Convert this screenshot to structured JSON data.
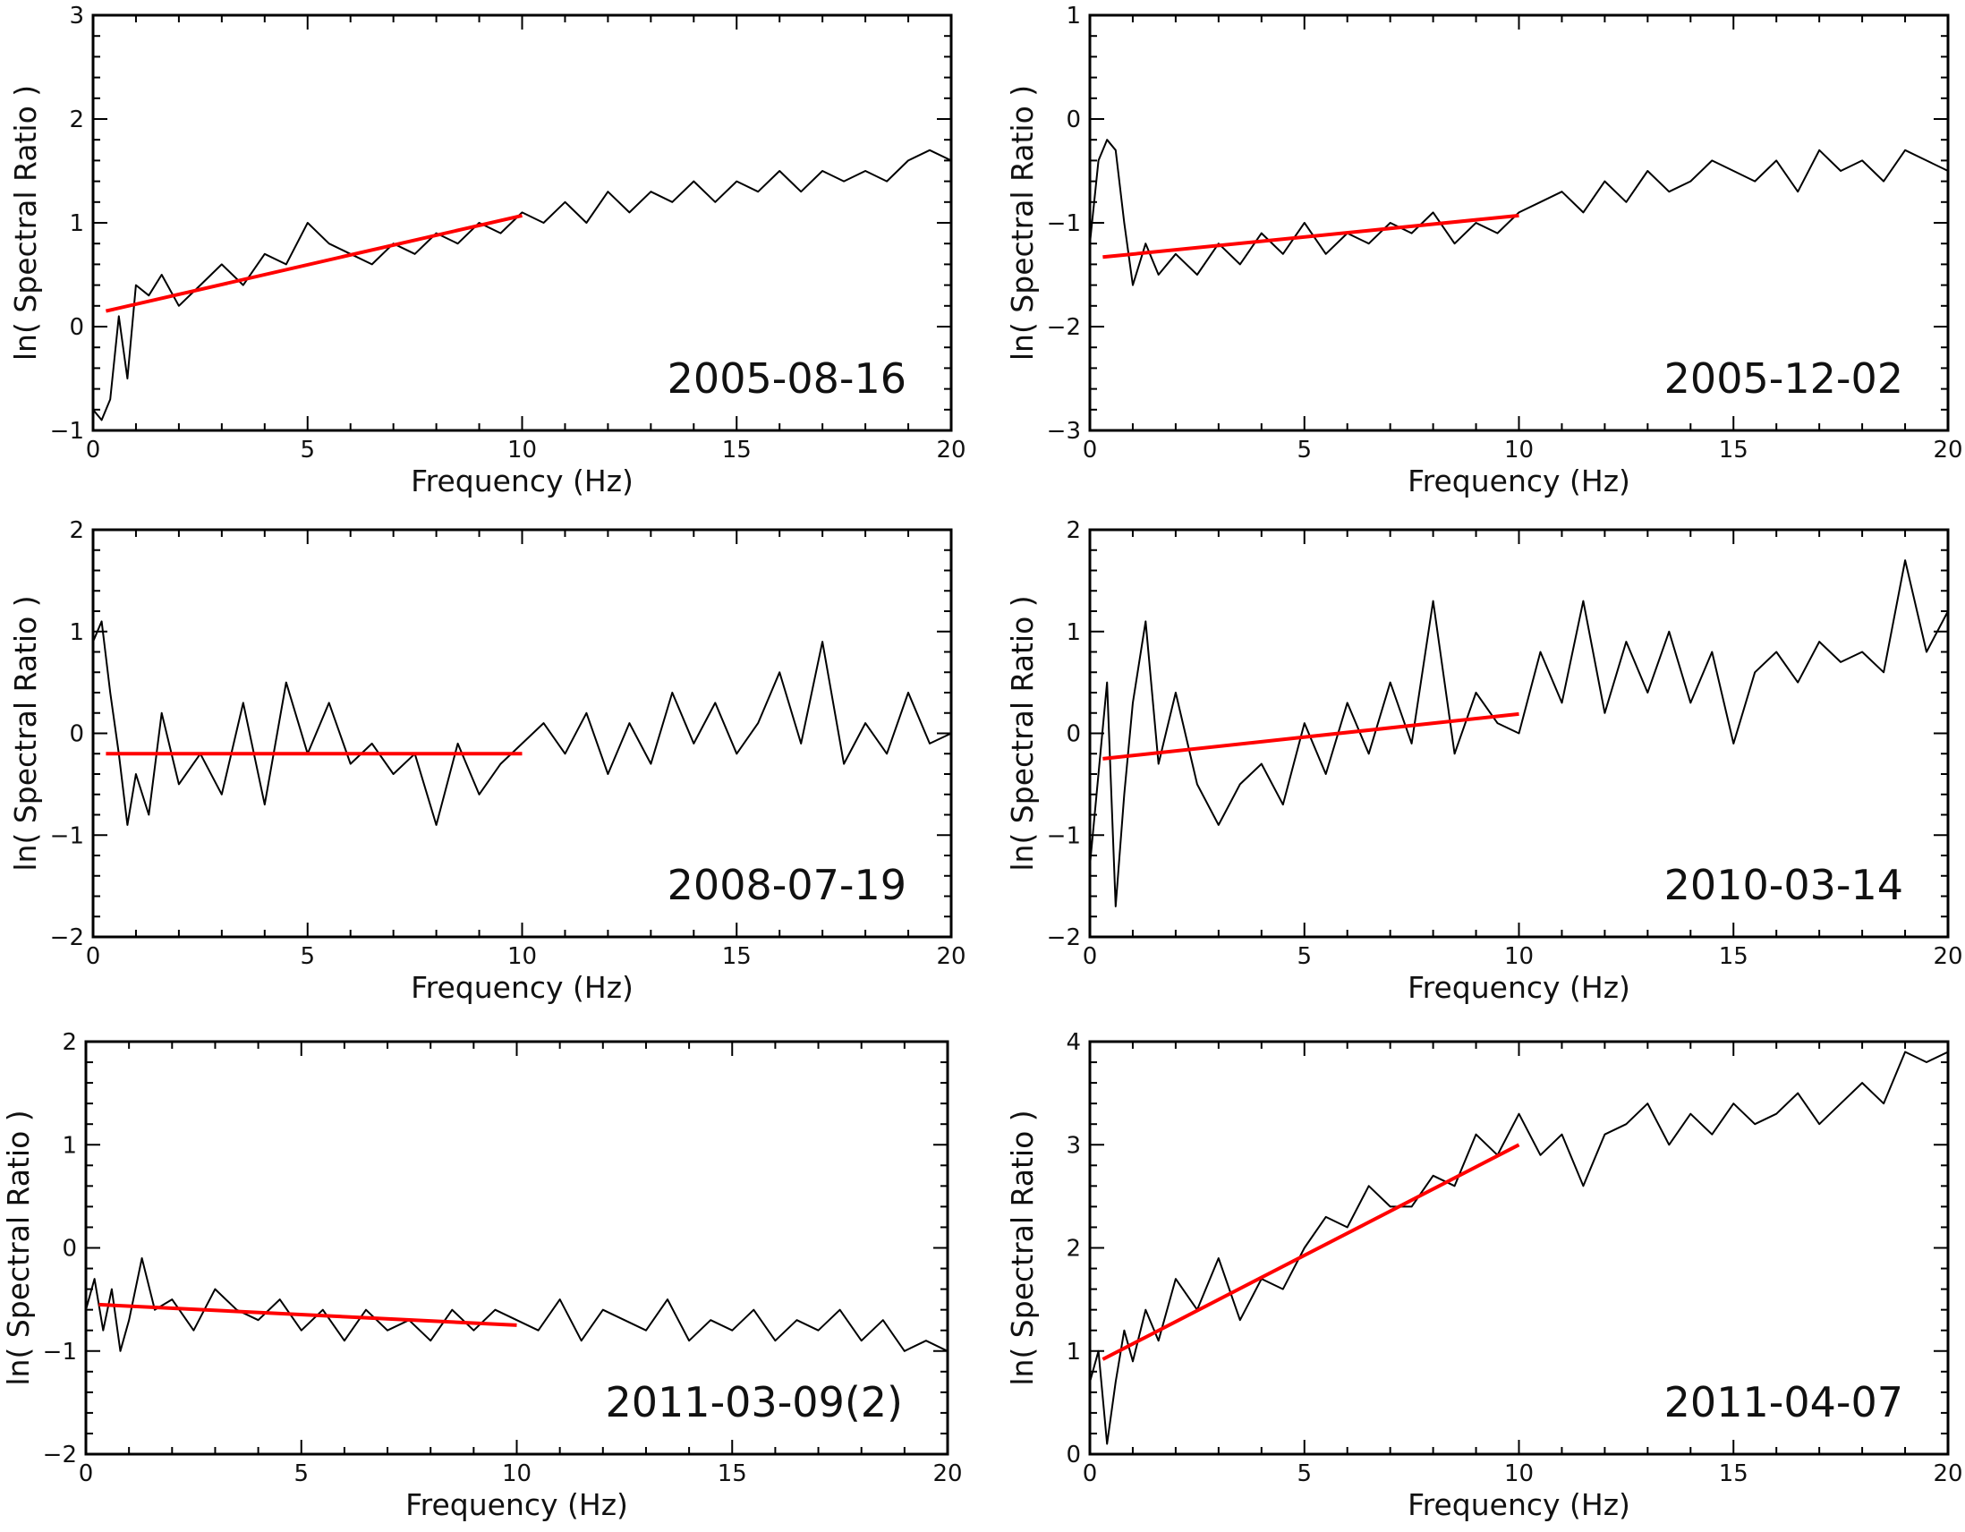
{
  "figure": {
    "colors": {
      "line": "#000000",
      "fit": "#ff0000",
      "frame": "#000000"
    }
  },
  "chart_data": [
    {
      "type": "line",
      "annotation": "2005-08-16",
      "xlabel": "Frequency (Hz)",
      "ylabel": "ln( Spectral Ratio )",
      "xlim": [
        0,
        20
      ],
      "ylim": [
        -1,
        3
      ],
      "xticks": [
        "0",
        "5",
        "10",
        "15",
        "20"
      ],
      "yticks": [
        "−1",
        "0",
        "1",
        "2",
        "3"
      ],
      "grid": false,
      "series": [
        {
          "kind": "spectrum",
          "color": "#000000",
          "x": [
            0.0,
            0.2,
            0.4,
            0.6,
            0.8,
            1.0,
            1.3,
            1.6,
            2.0,
            2.5,
            3.0,
            3.5,
            4.0,
            4.5,
            5.0,
            5.5,
            6.0,
            6.5,
            7.0,
            7.5,
            8.0,
            8.5,
            9.0,
            9.5,
            10.0,
            10.5,
            11.0,
            11.5,
            12.0,
            12.5,
            13.0,
            13.5,
            14.0,
            14.5,
            15.0,
            15.5,
            16.0,
            16.5,
            17.0,
            17.5,
            18.0,
            18.5,
            19.0,
            19.5,
            20.0
          ],
          "y": [
            -0.8,
            -0.9,
            -0.7,
            0.1,
            -0.5,
            0.4,
            0.3,
            0.5,
            0.2,
            0.4,
            0.6,
            0.4,
            0.7,
            0.6,
            1.0,
            0.8,
            0.7,
            0.6,
            0.8,
            0.7,
            0.9,
            0.8,
            1.0,
            0.9,
            1.1,
            1.0,
            1.2,
            1.0,
            1.3,
            1.1,
            1.3,
            1.2,
            1.4,
            1.2,
            1.4,
            1.3,
            1.5,
            1.3,
            1.5,
            1.4,
            1.5,
            1.4,
            1.6,
            1.7,
            1.6
          ]
        },
        {
          "kind": "fit",
          "color": "#ff0000",
          "x": [
            0.3,
            10.0
          ],
          "y": [
            0.15,
            1.07
          ]
        }
      ]
    },
    {
      "type": "line",
      "annotation": "2005-12-02",
      "xlabel": "Frequency (Hz)",
      "ylabel": "ln( Spectral Ratio )",
      "xlim": [
        0,
        20
      ],
      "ylim": [
        -3,
        1
      ],
      "xticks": [
        "0",
        "5",
        "10",
        "15",
        "20"
      ],
      "yticks": [
        "−3",
        "−2",
        "−1",
        "0",
        "1"
      ],
      "grid": false,
      "series": [
        {
          "kind": "spectrum",
          "color": "#000000",
          "x": [
            0.0,
            0.2,
            0.4,
            0.6,
            0.8,
            1.0,
            1.3,
            1.6,
            2.0,
            2.5,
            3.0,
            3.5,
            4.0,
            4.5,
            5.0,
            5.5,
            6.0,
            6.5,
            7.0,
            7.5,
            8.0,
            8.5,
            9.0,
            9.5,
            10.0,
            10.5,
            11.0,
            11.5,
            12.0,
            12.5,
            13.0,
            13.5,
            14.0,
            14.5,
            15.0,
            15.5,
            16.0,
            16.5,
            17.0,
            17.5,
            18.0,
            18.5,
            19.0,
            19.5,
            20.0
          ],
          "y": [
            -1.2,
            -0.4,
            -0.2,
            -0.3,
            -1.0,
            -1.6,
            -1.2,
            -1.5,
            -1.3,
            -1.5,
            -1.2,
            -1.4,
            -1.1,
            -1.3,
            -1.0,
            -1.3,
            -1.1,
            -1.2,
            -1.0,
            -1.1,
            -0.9,
            -1.2,
            -1.0,
            -1.1,
            -0.9,
            -0.8,
            -0.7,
            -0.9,
            -0.6,
            -0.8,
            -0.5,
            -0.7,
            -0.6,
            -0.4,
            -0.5,
            -0.6,
            -0.4,
            -0.7,
            -0.3,
            -0.5,
            -0.4,
            -0.6,
            -0.3,
            -0.4,
            -0.5
          ]
        },
        {
          "kind": "fit",
          "color": "#ff0000",
          "x": [
            0.3,
            10.0
          ],
          "y": [
            -1.33,
            -0.93
          ]
        }
      ]
    },
    {
      "type": "line",
      "annotation": "2008-07-19",
      "xlabel": "Frequency (Hz)",
      "ylabel": "ln( Spectral Ratio )",
      "xlim": [
        0,
        20
      ],
      "ylim": [
        -2,
        2
      ],
      "xticks": [
        "0",
        "5",
        "10",
        "15",
        "20"
      ],
      "yticks": [
        "−2",
        "−1",
        "0",
        "1",
        "2"
      ],
      "grid": false,
      "series": [
        {
          "kind": "spectrum",
          "color": "#000000",
          "x": [
            0.0,
            0.2,
            0.4,
            0.6,
            0.8,
            1.0,
            1.3,
            1.6,
            2.0,
            2.5,
            3.0,
            3.5,
            4.0,
            4.5,
            5.0,
            5.5,
            6.0,
            6.5,
            7.0,
            7.5,
            8.0,
            8.5,
            9.0,
            9.5,
            10.0,
            10.5,
            11.0,
            11.5,
            12.0,
            12.5,
            13.0,
            13.5,
            14.0,
            14.5,
            15.0,
            15.5,
            16.0,
            16.5,
            17.0,
            17.5,
            18.0,
            18.5,
            19.0,
            19.5,
            20.0
          ],
          "y": [
            0.9,
            1.1,
            0.4,
            -0.2,
            -0.9,
            -0.4,
            -0.8,
            0.2,
            -0.5,
            -0.2,
            -0.6,
            0.3,
            -0.7,
            0.5,
            -0.2,
            0.3,
            -0.3,
            -0.1,
            -0.4,
            -0.2,
            -0.9,
            -0.1,
            -0.6,
            -0.3,
            -0.1,
            0.1,
            -0.2,
            0.2,
            -0.4,
            0.1,
            -0.3,
            0.4,
            -0.1,
            0.3,
            -0.2,
            0.1,
            0.6,
            -0.1,
            0.9,
            -0.3,
            0.1,
            -0.2,
            0.4,
            -0.1,
            0.0
          ]
        },
        {
          "kind": "fit",
          "color": "#ff0000",
          "x": [
            0.3,
            10.0
          ],
          "y": [
            -0.2,
            -0.2
          ]
        }
      ]
    },
    {
      "type": "line",
      "annotation": "2010-03-14",
      "xlabel": "Frequency (Hz)",
      "ylabel": "ln( Spectral Ratio )",
      "xlim": [
        0,
        20
      ],
      "ylim": [
        -2,
        2
      ],
      "xticks": [
        "0",
        "5",
        "10",
        "15",
        "20"
      ],
      "yticks": [
        "−2",
        "−1",
        "0",
        "1",
        "2"
      ],
      "grid": false,
      "series": [
        {
          "kind": "spectrum",
          "color": "#000000",
          "x": [
            0.0,
            0.2,
            0.4,
            0.6,
            0.8,
            1.0,
            1.3,
            1.6,
            2.0,
            2.5,
            3.0,
            3.5,
            4.0,
            4.5,
            5.0,
            5.5,
            6.0,
            6.5,
            7.0,
            7.5,
            8.0,
            8.5,
            9.0,
            9.5,
            10.0,
            10.5,
            11.0,
            11.5,
            12.0,
            12.5,
            13.0,
            13.5,
            14.0,
            14.5,
            15.0,
            15.5,
            16.0,
            16.5,
            17.0,
            17.5,
            18.0,
            18.5,
            19.0,
            19.5,
            20.0
          ],
          "y": [
            -1.3,
            -0.4,
            0.5,
            -1.7,
            -0.6,
            0.3,
            1.1,
            -0.3,
            0.4,
            -0.5,
            -0.9,
            -0.5,
            -0.3,
            -0.7,
            0.1,
            -0.4,
            0.3,
            -0.2,
            0.5,
            -0.1,
            1.3,
            -0.2,
            0.4,
            0.1,
            0.0,
            0.8,
            0.3,
            1.3,
            0.2,
            0.9,
            0.4,
            1.0,
            0.3,
            0.8,
            -0.1,
            0.6,
            0.8,
            0.5,
            0.9,
            0.7,
            0.8,
            0.6,
            1.7,
            0.8,
            1.2
          ]
        },
        {
          "kind": "fit",
          "color": "#ff0000",
          "x": [
            0.3,
            10.0
          ],
          "y": [
            -0.25,
            0.19
          ]
        }
      ]
    },
    {
      "type": "line",
      "annotation": "2011-03-09(2)",
      "xlabel": "Frequency (Hz)",
      "ylabel": "ln( Spectral Ratio )",
      "xlim": [
        0,
        20
      ],
      "ylim": [
        -2,
        2
      ],
      "xticks": [
        "0",
        "5",
        "10",
        "15",
        "20"
      ],
      "yticks": [
        "−2",
        "−1",
        "0",
        "1",
        "2"
      ],
      "grid": false,
      "series": [
        {
          "kind": "spectrum",
          "color": "#000000",
          "x": [
            0.0,
            0.2,
            0.4,
            0.6,
            0.8,
            1.0,
            1.3,
            1.6,
            2.0,
            2.5,
            3.0,
            3.5,
            4.0,
            4.5,
            5.0,
            5.5,
            6.0,
            6.5,
            7.0,
            7.5,
            8.0,
            8.5,
            9.0,
            9.5,
            10.0,
            10.5,
            11.0,
            11.5,
            12.0,
            12.5,
            13.0,
            13.5,
            14.0,
            14.5,
            15.0,
            15.5,
            16.0,
            16.5,
            17.0,
            17.5,
            18.0,
            18.5,
            19.0,
            19.5,
            20.0
          ],
          "y": [
            -0.6,
            -0.3,
            -0.8,
            -0.4,
            -1.0,
            -0.7,
            -0.1,
            -0.6,
            -0.5,
            -0.8,
            -0.4,
            -0.6,
            -0.7,
            -0.5,
            -0.8,
            -0.6,
            -0.9,
            -0.6,
            -0.8,
            -0.7,
            -0.9,
            -0.6,
            -0.8,
            -0.6,
            -0.7,
            -0.8,
            -0.5,
            -0.9,
            -0.6,
            -0.7,
            -0.8,
            -0.5,
            -0.9,
            -0.7,
            -0.8,
            -0.6,
            -0.9,
            -0.7,
            -0.8,
            -0.6,
            -0.9,
            -0.7,
            -1.0,
            -0.9,
            -1.0
          ]
        },
        {
          "kind": "fit",
          "color": "#ff0000",
          "x": [
            0.3,
            10.0
          ],
          "y": [
            -0.55,
            -0.75
          ]
        }
      ]
    },
    {
      "type": "line",
      "annotation": "2011-04-07",
      "xlabel": "Frequency (Hz)",
      "ylabel": "ln( Spectral Ratio )",
      "xlim": [
        0,
        20
      ],
      "ylim": [
        0,
        4
      ],
      "xticks": [
        "0",
        "5",
        "10",
        "15",
        "20"
      ],
      "yticks": [
        "0",
        "1",
        "2",
        "3",
        "4"
      ],
      "grid": false,
      "series": [
        {
          "kind": "spectrum",
          "color": "#000000",
          "x": [
            0.0,
            0.2,
            0.4,
            0.6,
            0.8,
            1.0,
            1.3,
            1.6,
            2.0,
            2.5,
            3.0,
            3.5,
            4.0,
            4.5,
            5.0,
            5.5,
            6.0,
            6.5,
            7.0,
            7.5,
            8.0,
            8.5,
            9.0,
            9.5,
            10.0,
            10.5,
            11.0,
            11.5,
            12.0,
            12.5,
            13.0,
            13.5,
            14.0,
            14.5,
            15.0,
            15.5,
            16.0,
            16.5,
            17.0,
            17.5,
            18.0,
            18.5,
            19.0,
            19.5,
            20.0
          ],
          "y": [
            0.7,
            1.0,
            0.1,
            0.7,
            1.2,
            0.9,
            1.4,
            1.1,
            1.7,
            1.4,
            1.9,
            1.3,
            1.7,
            1.6,
            2.0,
            2.3,
            2.2,
            2.6,
            2.4,
            2.4,
            2.7,
            2.6,
            3.1,
            2.9,
            3.3,
            2.9,
            3.1,
            2.6,
            3.1,
            3.2,
            3.4,
            3.0,
            3.3,
            3.1,
            3.4,
            3.2,
            3.3,
            3.5,
            3.2,
            3.4,
            3.6,
            3.4,
            3.9,
            3.8,
            3.9
          ]
        },
        {
          "kind": "fit",
          "color": "#ff0000",
          "x": [
            0.3,
            10.0
          ],
          "y": [
            0.92,
            3.0
          ]
        }
      ]
    }
  ]
}
